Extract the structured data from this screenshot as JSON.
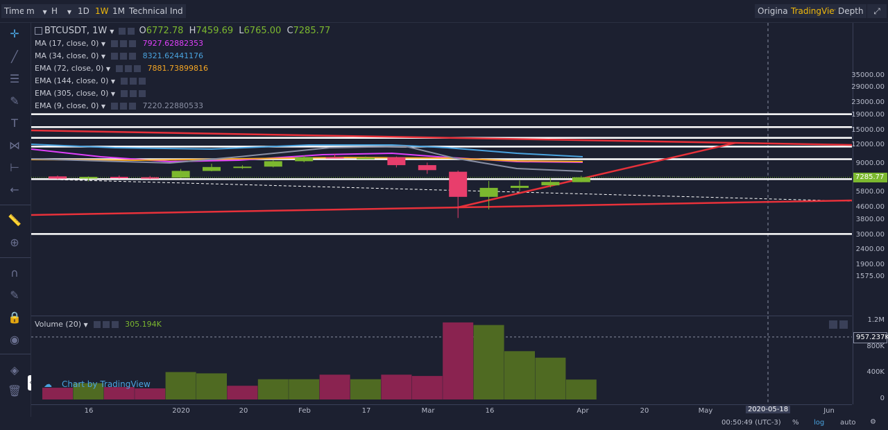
{
  "toolbar": {
    "time_label": "Time",
    "minute": "m",
    "hour": "H",
    "d1": "1D",
    "w1": "1W",
    "m1": "1M",
    "indicators": "Technical Ind",
    "original": "Original",
    "tradingview": "TradingView",
    "depth": "Depth"
  },
  "symbol": {
    "pair": "BTCUSDT, 1W",
    "open_lbl": "O",
    "open": "6772.78",
    "high_lbl": "H",
    "high": "7459.69",
    "low_lbl": "L",
    "low": "6765.00",
    "close_lbl": "C",
    "close": "7285.77"
  },
  "indicators": [
    {
      "name": "MA (17, close, 0)",
      "value": "7927.62882353",
      "color": "#e040fb"
    },
    {
      "name": "MA (34, close, 0)",
      "value": "8321.62441176",
      "color": "#4aa3df"
    },
    {
      "name": "EMA (72, close, 0)",
      "value": "7881.73899816",
      "color": "#f5a623"
    },
    {
      "name": "EMA (144, close, 0)",
      "value": "",
      "color": "#c9ccd6"
    },
    {
      "name": "EMA (305, close, 0)",
      "value": "",
      "color": "#c9ccd6"
    },
    {
      "name": "EMA (9, close, 0)",
      "value": "7220.22880533",
      "color": "#8a8fa3"
    }
  ],
  "volume": {
    "label": "Volume (20)",
    "value": "305.194K"
  },
  "watermark": "Chart by TradingView",
  "price_axis": [
    "35000.00",
    "29000.00",
    "23000.00",
    "19000.00",
    "15000.00",
    "12000.00",
    "9000.00",
    "7285.77",
    "5800.00",
    "4600.00",
    "3800.00",
    "3000.00",
    "2400.00",
    "1900.00",
    "1575.00"
  ],
  "volume_axis": [
    "1.2M",
    "957.237K",
    "800K",
    "400K",
    "0"
  ],
  "time_axis": [
    "16",
    "2020",
    "20",
    "Feb",
    "17",
    "Mar",
    "16",
    "Apr",
    "20",
    "May",
    "2020-05-18",
    "Jun"
  ],
  "status": {
    "clock": "00:50:49 (UTC-3)",
    "pct": "%",
    "log": "log",
    "auto": "auto"
  },
  "colors": {
    "up": "#7cb82f",
    "down": "#e83e6c",
    "trend": "#e8313a",
    "bg": "#1c2030"
  },
  "chart_data": {
    "type": "candlestick",
    "candles": [
      {
        "o": 7400,
        "h": 7500,
        "l": 7100,
        "c": 7150
      },
      {
        "o": 7150,
        "h": 7400,
        "l": 6850,
        "c": 7350
      },
      {
        "o": 7350,
        "h": 7500,
        "l": 7150,
        "c": 7300
      },
      {
        "o": 7300,
        "h": 7450,
        "l": 7100,
        "c": 7250
      },
      {
        "o": 7250,
        "h": 8300,
        "l": 7200,
        "c": 8050
      },
      {
        "o": 8050,
        "h": 9000,
        "l": 8000,
        "c": 8550
      },
      {
        "o": 8550,
        "h": 8800,
        "l": 8300,
        "c": 8600
      },
      {
        "o": 8600,
        "h": 9500,
        "l": 8500,
        "c": 9350
      },
      {
        "o": 9350,
        "h": 10200,
        "l": 9200,
        "c": 9950
      },
      {
        "o": 9950,
        "h": 10450,
        "l": 9750,
        "c": 9850
      },
      {
        "o": 9850,
        "h": 10050,
        "l": 9650,
        "c": 9850
      },
      {
        "o": 9950,
        "h": 10050,
        "l": 8500,
        "c": 8800
      },
      {
        "o": 8800,
        "h": 9150,
        "l": 7700,
        "c": 8150
      },
      {
        "o": 7950,
        "h": 8100,
        "l": 3900,
        "c": 5400
      },
      {
        "o": 5400,
        "h": 6900,
        "l": 4450,
        "c": 6200
      },
      {
        "o": 6200,
        "h": 6950,
        "l": 5900,
        "c": 6400
      },
      {
        "o": 6450,
        "h": 7200,
        "l": 6250,
        "c": 6800
      },
      {
        "o": 6772.78,
        "h": 7459.69,
        "l": 6765,
        "c": 7285.77
      }
    ],
    "volume": [
      {
        "v": 180000,
        "up": false
      },
      {
        "v": 250000,
        "up": true
      },
      {
        "v": 190000,
        "up": false
      },
      {
        "v": 170000,
        "up": false
      },
      {
        "v": 420000,
        "up": true
      },
      {
        "v": 400000,
        "up": true
      },
      {
        "v": 210000,
        "up": false
      },
      {
        "v": 310000,
        "up": true
      },
      {
        "v": 310000,
        "up": true
      },
      {
        "v": 380000,
        "up": false
      },
      {
        "v": 310000,
        "up": true
      },
      {
        "v": 380000,
        "up": false
      },
      {
        "v": 360000,
        "up": false
      },
      {
        "v": 1180000,
        "up": false
      },
      {
        "v": 1140000,
        "up": true
      },
      {
        "v": 740000,
        "up": true
      },
      {
        "v": 640000,
        "up": true
      },
      {
        "v": 305194,
        "up": true
      }
    ],
    "horizontal_levels": [
      19300,
      15800,
      13400,
      11700,
      9650,
      7100,
      3050
    ],
    "last_price": "7285.77",
    "volume_ref": "957.237K"
  }
}
